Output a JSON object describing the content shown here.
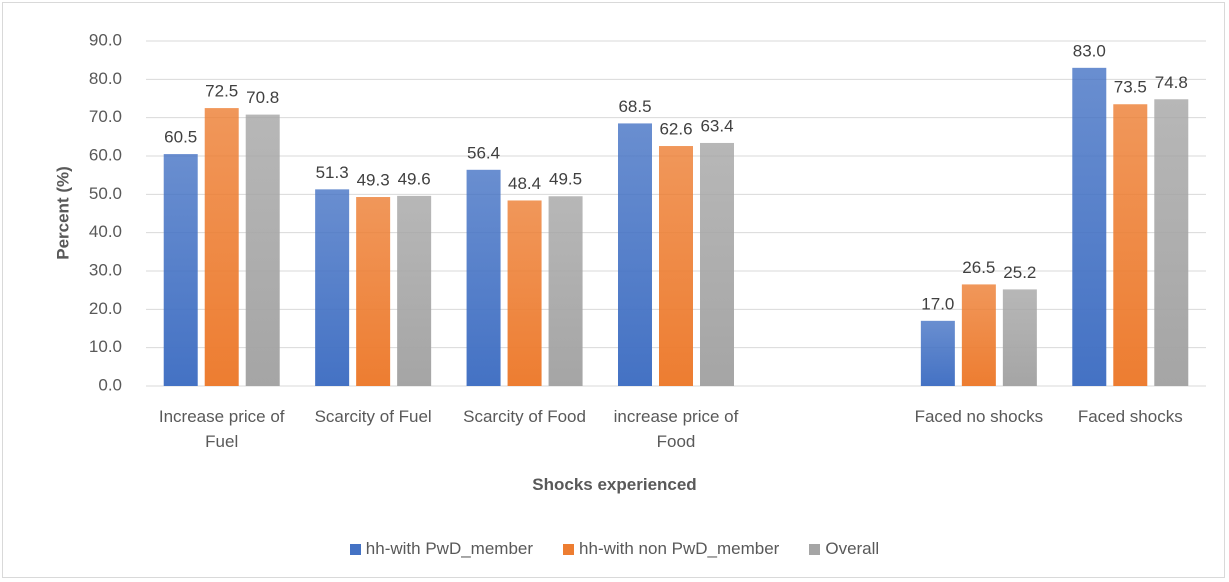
{
  "chart_data": {
    "type": "bar",
    "categories": [
      "Increase price of Fuel",
      "Scarcity of Fuel",
      "Scarcity of Food",
      "increase price of Food",
      null,
      "Faced no shocks",
      "Faced shocks"
    ],
    "series": [
      {
        "name": "hh-with PwD_member",
        "color": "#4472c4",
        "values": [
          60.5,
          51.3,
          56.4,
          68.5,
          null,
          17.0,
          83.0
        ],
        "value_labels": [
          "60.5",
          "51.3",
          "56.4",
          "68.5",
          null,
          "17.0",
          "83.0"
        ]
      },
      {
        "name": "hh-with non PwD_member",
        "color": "#ed7d31",
        "values": [
          72.5,
          49.3,
          48.4,
          62.6,
          null,
          26.5,
          73.5
        ],
        "value_labels": [
          "72.5",
          "49.3",
          "48.4",
          "62.6",
          null,
          "26.5",
          "73.5"
        ]
      },
      {
        "name": "Overall",
        "color": "#a5a5a5",
        "values": [
          70.8,
          49.6,
          49.5,
          63.4,
          null,
          25.2,
          74.8
        ],
        "value_labels": [
          "70.8",
          "49.6",
          "49.5",
          "63.4",
          null,
          "25.2",
          "74.8"
        ]
      }
    ],
    "y_label": "Percent (%)",
    "x_label": "Shocks experienced",
    "ylim": [
      0,
      90
    ],
    "yticks": [
      {
        "value": 0,
        "label": "0.0"
      },
      {
        "value": 10,
        "label": "10.0"
      },
      {
        "value": 20,
        "label": "20.0"
      },
      {
        "value": 30,
        "label": "30.0"
      },
      {
        "value": 40,
        "label": "40.0"
      },
      {
        "value": 50,
        "label": "50.0"
      },
      {
        "value": 60,
        "label": "60.0"
      },
      {
        "value": 70,
        "label": "70.0"
      },
      {
        "value": 80,
        "label": "80.0"
      },
      {
        "value": 90,
        "label": "90.0"
      }
    ],
    "grid": true,
    "legend": "bottom"
  }
}
